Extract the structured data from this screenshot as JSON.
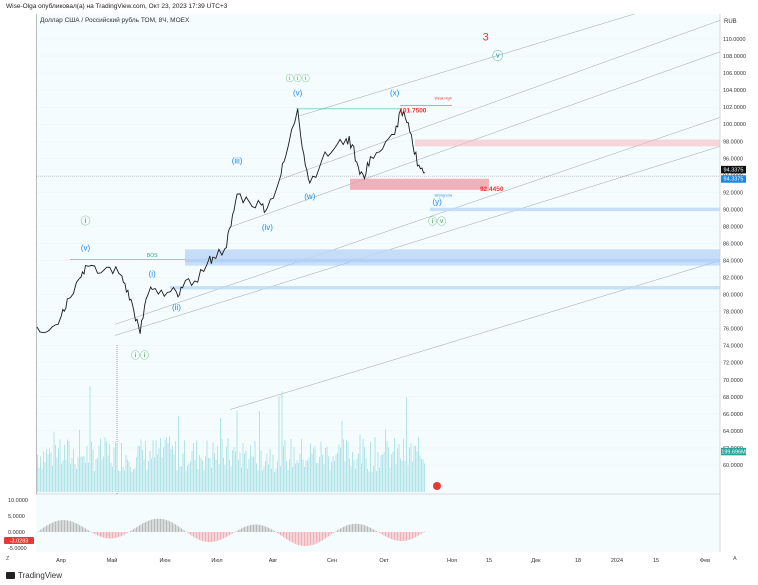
{
  "header": {
    "publish_line": "Wise-Olga опубликовал(а) на TradingView.com, Окт 23, 2023 17:39 UTC+3"
  },
  "footer": {
    "brand": "TradingView"
  },
  "chart_data": {
    "type": "candlestick",
    "title": "Доллар США / Российский рубль ТОМ, 8Ч, MOEX",
    "currency": "RUB",
    "ylim": [
      58,
      112
    ],
    "y_ticks": [
      60,
      62,
      64,
      66,
      68,
      70,
      72,
      74,
      76,
      78,
      80,
      82,
      84,
      86,
      88,
      90,
      92,
      94,
      96,
      98,
      100,
      102,
      104,
      106,
      108,
      110
    ],
    "x_labels": [
      "Апр",
      "Май",
      "Июн",
      "Июл",
      "Авг",
      "Сен",
      "Окт",
      "Ноя",
      "15",
      "Дек",
      "18",
      "2024",
      "15",
      "Фев"
    ],
    "price_series": [
      {
        "t": 0,
        "v": 76.2
      },
      {
        "t": 2,
        "v": 75.8
      },
      {
        "t": 4,
        "v": 77.5
      },
      {
        "t": 5,
        "v": 79.5
      },
      {
        "t": 7,
        "v": 81.9
      },
      {
        "t": 8,
        "v": 83.4
      },
      {
        "t": 10,
        "v": 82.5
      },
      {
        "t": 12,
        "v": 83.2
      },
      {
        "t": 14,
        "v": 82.2
      },
      {
        "t": 15,
        "v": 80.5
      },
      {
        "t": 16,
        "v": 78.0
      },
      {
        "t": 17,
        "v": 75.4
      },
      {
        "t": 18,
        "v": 79.5
      },
      {
        "t": 19,
        "v": 80.6
      },
      {
        "t": 21,
        "v": 79.8
      },
      {
        "t": 23,
        "v": 80.3
      },
      {
        "t": 24,
        "v": 80.8
      },
      {
        "t": 26,
        "v": 81.6
      },
      {
        "t": 28,
        "v": 83.5
      },
      {
        "t": 29,
        "v": 84.4
      },
      {
        "t": 31,
        "v": 85.4
      },
      {
        "t": 32,
        "v": 88.0
      },
      {
        "t": 33,
        "v": 91.8
      },
      {
        "t": 35,
        "v": 90.9
      },
      {
        "t": 37,
        "v": 90.5
      },
      {
        "t": 38,
        "v": 90.2
      },
      {
        "t": 40,
        "v": 93.5
      },
      {
        "t": 41,
        "v": 96.2
      },
      {
        "t": 43,
        "v": 101.8
      },
      {
        "t": 44,
        "v": 96.5
      },
      {
        "t": 45,
        "v": 93.1
      },
      {
        "t": 47,
        "v": 95.8
      },
      {
        "t": 49,
        "v": 97.1
      },
      {
        "t": 51,
        "v": 98.3
      },
      {
        "t": 52,
        "v": 97.6
      },
      {
        "t": 53,
        "v": 95.0
      },
      {
        "t": 54,
        "v": 93.6
      },
      {
        "t": 55,
        "v": 96.2
      },
      {
        "t": 57,
        "v": 97.1
      },
      {
        "t": 59,
        "v": 98.8
      },
      {
        "t": 60,
        "v": 101.7
      },
      {
        "t": 61,
        "v": 100.2
      },
      {
        "t": 62,
        "v": 97.5
      },
      {
        "t": 63,
        "v": 95.2
      },
      {
        "t": 64,
        "v": 94.3
      }
    ],
    "annotations": [
      {
        "text": "3",
        "t": 74,
        "v": 109.8,
        "color": "#e53935",
        "size": 11
      },
      {
        "text": "ⓥ",
        "t": 76,
        "v": 107.6,
        "color": "#26a69a",
        "size": 11
      },
      {
        "text": "ⓘⓘⓘ",
        "t": 43,
        "v": 105.1,
        "color": "#43a047",
        "size": 8
      },
      {
        "text": "(v)",
        "t": 43,
        "v": 103.4,
        "color": "#1e88e5",
        "size": 8
      },
      {
        "text": "(x)",
        "t": 59,
        "v": 103.4,
        "color": "#1e88e5",
        "size": 8
      },
      {
        "text": "(iii)",
        "t": 33,
        "v": 95.4,
        "color": "#1e88e5",
        "size": 8
      },
      {
        "text": "(w)",
        "t": 45,
        "v": 91.2,
        "color": "#1e88e5",
        "size": 8
      },
      {
        "text": "(iv)",
        "t": 38,
        "v": 87.6,
        "color": "#1e88e5",
        "size": 8
      },
      {
        "text": "(y)",
        "t": 66,
        "v": 90.6,
        "color": "#1e88e5",
        "size": 8
      },
      {
        "text": "ⓘⓥ",
        "t": 66,
        "v": 88.2,
        "color": "#43a047",
        "size": 9
      },
      {
        "text": "ⓘ",
        "t": 8,
        "v": 88.2,
        "color": "#43a047",
        "size": 10
      },
      {
        "text": "(v)",
        "t": 8,
        "v": 85.2,
        "color": "#1e88e5",
        "size": 8
      },
      {
        "text": "(i)",
        "t": 19,
        "v": 82.1,
        "color": "#1e88e5",
        "size": 8
      },
      {
        "text": "(ii)",
        "t": 23,
        "v": 78.2,
        "color": "#1e88e5",
        "size": 8
      },
      {
        "text": "ⓘⓘ",
        "t": 17,
        "v": 72.5,
        "color": "#43a047",
        "size": 9
      },
      {
        "text": "BOS",
        "t": 19,
        "v": 84.4,
        "color": "#26a69a",
        "size": 5
      },
      {
        "text": "Weak High",
        "t": 67,
        "v": 102.9,
        "color": "#e53935",
        "size": 3.5
      },
      {
        "text": "Strong Low",
        "t": 67,
        "v": 91.5,
        "color": "#1e88e5",
        "size": 3.5
      }
    ],
    "price_labels": [
      {
        "text": "101.7500",
        "t": 62,
        "v": 101.6,
        "color": "#e53935"
      },
      {
        "text": "92.4450",
        "t": 75,
        "v": 92.4,
        "color": "#e53935"
      }
    ],
    "right_badges": [
      {
        "text": "94.3375",
        "v": 94.7,
        "bg": "#111111"
      },
      {
        "text": "94.3375",
        "v": 93.6,
        "bg": "#1e88e5"
      },
      {
        "text": "199.696M",
        "v": 61.6,
        "bg": "#26a69a"
      }
    ],
    "current_price": 94.34,
    "volume_label": "199.696M",
    "oscillator": {
      "ticks": [
        10.0,
        5.0,
        0.0,
        -5.0
      ],
      "tick_labels": [
        "10.0000",
        "5.0000",
        "0.0000",
        "-5.0000"
      ],
      "current_value": "-3.0283"
    }
  }
}
